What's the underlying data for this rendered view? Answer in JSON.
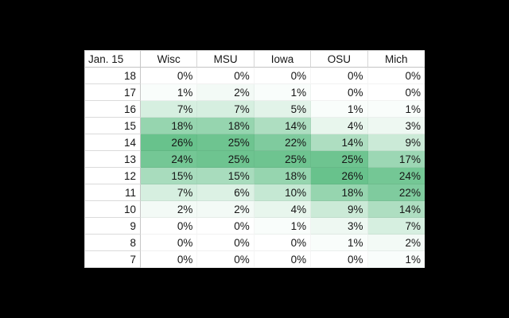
{
  "colors": {
    "page_background": "#000000",
    "table_background": "#FFFFFF",
    "text": "#161616",
    "gridline": "#D6D6D6"
  },
  "chart_data": {
    "type": "heatmap",
    "title": "Jan. 15",
    "x_categories": [
      "Wisc",
      "MSU",
      "Iowa",
      "OSU",
      "Mich"
    ],
    "y_categories": [
      "18",
      "17",
      "16",
      "15",
      "14",
      "13",
      "12",
      "11",
      "10",
      "9",
      "8",
      "7"
    ],
    "values_percent": [
      [
        0,
        0,
        0,
        0,
        0
      ],
      [
        1,
        2,
        1,
        0,
        0
      ],
      [
        7,
        7,
        5,
        1,
        1
      ],
      [
        18,
        18,
        14,
        4,
        3
      ],
      [
        26,
        25,
        22,
        14,
        9
      ],
      [
        24,
        25,
        25,
        25,
        17
      ],
      [
        15,
        15,
        18,
        26,
        24
      ],
      [
        7,
        6,
        10,
        18,
        22
      ],
      [
        2,
        2,
        4,
        9,
        14
      ],
      [
        0,
        0,
        1,
        3,
        7
      ],
      [
        0,
        0,
        0,
        1,
        2
      ],
      [
        0,
        0,
        0,
        0,
        1
      ]
    ],
    "unit": "%",
    "color_scale": {
      "min_value": 0,
      "min_color": "#FFFFFF",
      "max_value": 26,
      "max_color": "#68C28C"
    },
    "legend": "none",
    "grid": "light",
    "value_alignment": "right",
    "header_alignment": "center"
  }
}
